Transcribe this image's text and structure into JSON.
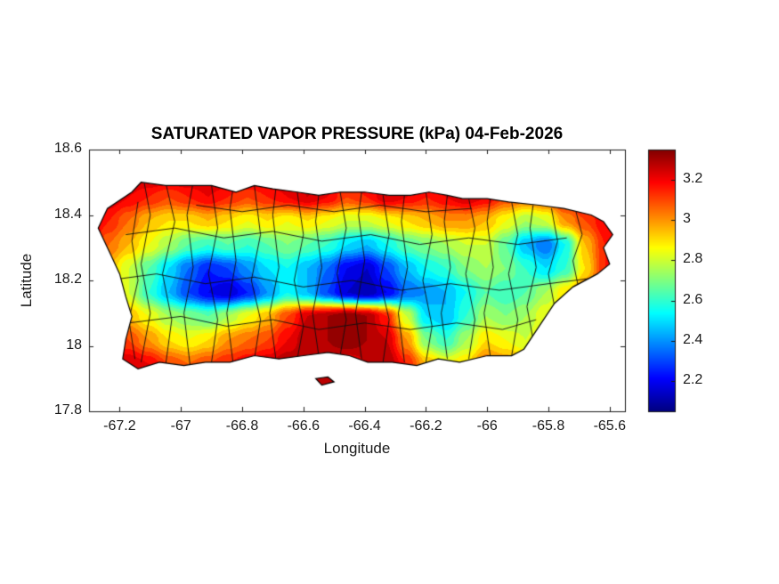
{
  "figure": {
    "title": "SATURATED VAPOR PRESSURE (kPa) 04-Feb-2026",
    "xlabel": "Longitude",
    "ylabel": "Latitude",
    "background": "#ffffff"
  },
  "axes": {
    "xlim": [
      -67.3,
      -65.55
    ],
    "ylim": [
      17.8,
      18.6
    ],
    "xticks": [
      -67.2,
      -67,
      -66.8,
      -66.6,
      -66.4,
      -66.2,
      -66,
      -65.8,
      -65.6
    ],
    "xtick_labels": [
      "-67.2",
      "-67",
      "-66.8",
      "-66.6",
      "-66.4",
      "-66.2",
      "-66",
      "-65.8",
      "-65.6"
    ],
    "yticks": [
      17.8,
      18,
      18.2,
      18.4,
      18.6
    ],
    "ytick_labels": [
      "17.8",
      "18",
      "18.2",
      "18.4",
      "18.6"
    ]
  },
  "colorbar": {
    "clim": [
      2.05,
      3.35
    ],
    "ticks": [
      2.2,
      2.4,
      2.6,
      2.8,
      3,
      3.2
    ],
    "tick_labels": [
      "2.2",
      "2.4",
      "2.6",
      "2.8",
      "3",
      "3.2"
    ]
  },
  "colormap": {
    "name": "jet",
    "stops": [
      [
        0.0,
        "#000080"
      ],
      [
        0.125,
        "#0000FF"
      ],
      [
        0.375,
        "#00FFFF"
      ],
      [
        0.625,
        "#FFFF00"
      ],
      [
        0.875,
        "#FF0000"
      ],
      [
        1.0,
        "#800000"
      ]
    ]
  },
  "chart_data": {
    "type": "heatmap",
    "title": "SATURATED VAPOR PRESSURE (kPa) 04-Feb-2026",
    "xlabel": "Longitude",
    "ylabel": "Latitude",
    "units": "kPa",
    "date": "04-Feb-2026",
    "contour_step": 0.05,
    "lon": [
      -67.3,
      -67.235,
      -67.17,
      -67.105,
      -67.04,
      -66.976,
      -66.911,
      -66.846,
      -66.781,
      -66.716,
      -66.652,
      -66.587,
      -66.522,
      -66.457,
      -66.393,
      -66.328,
      -66.263,
      -66.198,
      -66.133,
      -66.069,
      -66.004,
      -65.939,
      -65.874,
      -65.809,
      -65.745,
      -65.68,
      -65.615,
      -65.55
    ],
    "lat": [
      17.8,
      17.873,
      17.945,
      18.018,
      18.091,
      18.164,
      18.236,
      18.309,
      18.382,
      18.455,
      18.527,
      18.6
    ],
    "values_kpa": [
      [
        3.3,
        3.3,
        3.3,
        3.3,
        3.3,
        3.3,
        3.3,
        3.3,
        3.3,
        3.3,
        3.3,
        3.3,
        3.3,
        3.3,
        3.3,
        3.3,
        3.1,
        2.9,
        2.85,
        2.95,
        3.05,
        3.0,
        3.0,
        3.1,
        3.2,
        3.3,
        3.3,
        3.3
      ],
      [
        3.3,
        3.3,
        3.3,
        3.3,
        3.3,
        3.3,
        3.3,
        3.3,
        3.3,
        3.3,
        3.3,
        3.3,
        3.3,
        3.3,
        3.3,
        3.3,
        3.1,
        2.9,
        2.85,
        2.95,
        3.05,
        3.0,
        3.0,
        3.1,
        3.2,
        3.3,
        3.3,
        3.3
      ],
      [
        3.1,
        3.2,
        3.25,
        3.2,
        3.1,
        3.05,
        3.1,
        3.15,
        3.2,
        3.25,
        3.3,
        3.3,
        3.25,
        3.2,
        3.25,
        3.3,
        3.15,
        2.95,
        2.85,
        2.9,
        3.05,
        3.0,
        2.95,
        3.05,
        3.1,
        3.2,
        3.2,
        3.2
      ],
      [
        3.15,
        3.2,
        3.1,
        3.0,
        2.9,
        2.85,
        2.9,
        3.0,
        3.05,
        3.1,
        3.2,
        3.3,
        3.3,
        3.35,
        3.3,
        3.25,
        3.0,
        2.7,
        2.6,
        2.75,
        2.9,
        2.85,
        2.8,
        2.9,
        3.0,
        3.1,
        3.15,
        3.2
      ],
      [
        3.2,
        3.1,
        2.95,
        2.85,
        2.75,
        2.7,
        2.65,
        2.75,
        2.85,
        2.95,
        3.1,
        3.25,
        3.3,
        3.35,
        3.3,
        3.15,
        2.8,
        2.5,
        2.45,
        2.6,
        2.75,
        2.7,
        2.75,
        2.85,
        2.95,
        3.05,
        3.15,
        3.2
      ],
      [
        3.15,
        3.0,
        2.8,
        2.6,
        2.45,
        2.3,
        2.2,
        2.15,
        2.25,
        2.4,
        2.55,
        2.45,
        2.3,
        2.15,
        2.1,
        2.2,
        2.35,
        2.4,
        2.45,
        2.55,
        2.65,
        2.6,
        2.65,
        2.75,
        2.9,
        3.05,
        3.2,
        3.25
      ],
      [
        3.1,
        2.95,
        2.8,
        2.65,
        2.5,
        2.35,
        2.25,
        2.3,
        2.4,
        2.5,
        2.55,
        2.45,
        2.35,
        2.2,
        2.15,
        2.3,
        2.45,
        2.55,
        2.6,
        2.7,
        2.75,
        2.7,
        2.6,
        2.5,
        2.6,
        2.9,
        3.15,
        3.3
      ],
      [
        3.2,
        3.05,
        2.95,
        2.85,
        2.75,
        2.65,
        2.6,
        2.65,
        2.6,
        2.65,
        2.7,
        2.65,
        2.6,
        2.5,
        2.45,
        2.55,
        2.65,
        2.7,
        2.75,
        2.8,
        2.8,
        2.65,
        2.45,
        2.35,
        2.55,
        2.95,
        3.15,
        3.25
      ],
      [
        3.25,
        3.15,
        3.05,
        2.95,
        2.9,
        2.9,
        2.95,
        2.9,
        2.85,
        2.9,
        2.85,
        2.9,
        2.85,
        2.8,
        2.8,
        2.85,
        2.9,
        2.95,
        3.0,
        3.0,
        2.95,
        2.85,
        2.75,
        2.8,
        3.0,
        3.1,
        3.2,
        3.25
      ],
      [
        3.3,
        3.25,
        3.2,
        3.15,
        3.1,
        3.15,
        3.2,
        3.15,
        3.1,
        3.15,
        3.2,
        3.25,
        3.2,
        3.1,
        3.15,
        3.25,
        3.2,
        3.15,
        3.2,
        3.25,
        3.2,
        3.1,
        3.05,
        3.1,
        3.2,
        3.25,
        3.3,
        3.3
      ],
      [
        3.3,
        3.3,
        3.3,
        3.3,
        3.3,
        3.3,
        3.3,
        3.3,
        3.3,
        3.3,
        3.3,
        3.3,
        3.3,
        3.3,
        3.3,
        3.3,
        3.3,
        3.3,
        3.3,
        3.3,
        3.3,
        3.3,
        3.3,
        3.3,
        3.3,
        3.3,
        3.3,
        3.3
      ],
      [
        3.3,
        3.3,
        3.3,
        3.3,
        3.3,
        3.3,
        3.3,
        3.3,
        3.3,
        3.3,
        3.3,
        3.3,
        3.3,
        3.3,
        3.3,
        3.3,
        3.3,
        3.3,
        3.3,
        3.3,
        3.3,
        3.3,
        3.3,
        3.3,
        3.3,
        3.3,
        3.3,
        3.3
      ]
    ]
  },
  "map": {
    "region": "Puerto Rico",
    "island_outline": [
      [
        -67.27,
        18.36
      ],
      [
        -67.24,
        18.42
      ],
      [
        -67.16,
        18.47
      ],
      [
        -67.13,
        18.5
      ],
      [
        -67.05,
        18.49
      ],
      [
        -66.95,
        18.49
      ],
      [
        -66.9,
        18.49
      ],
      [
        -66.82,
        18.47
      ],
      [
        -66.76,
        18.49
      ],
      [
        -66.7,
        18.48
      ],
      [
        -66.62,
        18.47
      ],
      [
        -66.55,
        18.46
      ],
      [
        -66.48,
        18.47
      ],
      [
        -66.4,
        18.47
      ],
      [
        -66.32,
        18.46
      ],
      [
        -66.25,
        18.46
      ],
      [
        -66.19,
        18.47
      ],
      [
        -66.13,
        18.46
      ],
      [
        -66.08,
        18.45
      ],
      [
        -66.0,
        18.45
      ],
      [
        -65.93,
        18.44
      ],
      [
        -65.83,
        18.43
      ],
      [
        -65.75,
        18.42
      ],
      [
        -65.66,
        18.4
      ],
      [
        -65.62,
        18.38
      ],
      [
        -65.59,
        18.34
      ],
      [
        -65.62,
        18.3
      ],
      [
        -65.6,
        18.25
      ],
      [
        -65.64,
        18.22
      ],
      [
        -65.72,
        18.18
      ],
      [
        -65.78,
        18.13
      ],
      [
        -65.83,
        18.06
      ],
      [
        -65.88,
        17.99
      ],
      [
        -65.92,
        17.97
      ],
      [
        -66.0,
        17.97
      ],
      [
        -66.09,
        17.95
      ],
      [
        -66.16,
        17.96
      ],
      [
        -66.23,
        17.94
      ],
      [
        -66.31,
        17.95
      ],
      [
        -66.39,
        17.95
      ],
      [
        -66.45,
        17.97
      ],
      [
        -66.52,
        17.98
      ],
      [
        -66.6,
        17.97
      ],
      [
        -66.68,
        17.96
      ],
      [
        -66.76,
        17.97
      ],
      [
        -66.84,
        17.95
      ],
      [
        -66.92,
        17.95
      ],
      [
        -66.99,
        17.94
      ],
      [
        -67.07,
        17.95
      ],
      [
        -67.14,
        17.93
      ],
      [
        -67.19,
        17.96
      ],
      [
        -67.18,
        18.02
      ],
      [
        -67.16,
        18.09
      ],
      [
        -67.18,
        18.15
      ],
      [
        -67.2,
        18.22
      ],
      [
        -67.23,
        18.28
      ]
    ],
    "islets": [
      [
        [
          -66.56,
          17.9
        ],
        [
          -66.52,
          17.905
        ],
        [
          -66.5,
          17.89
        ],
        [
          -66.54,
          17.88
        ]
      ]
    ],
    "municipal_boundaries": [
      [
        [
          -67.15,
          17.96
        ],
        [
          -67.17,
          18.08
        ],
        [
          -67.14,
          18.2
        ],
        [
          -67.16,
          18.32
        ],
        [
          -67.14,
          18.44
        ]
      ],
      [
        [
          -67.13,
          17.95
        ],
        [
          -67.1,
          18.1
        ],
        [
          -67.13,
          18.25
        ],
        [
          -67.1,
          18.4
        ],
        [
          -67.12,
          18.5
        ]
      ],
      [
        [
          -67.05,
          17.94
        ],
        [
          -67.03,
          18.08
        ],
        [
          -67.06,
          18.22
        ],
        [
          -67.02,
          18.38
        ],
        [
          -67.05,
          18.5
        ]
      ],
      [
        [
          -66.97,
          17.94
        ],
        [
          -66.99,
          18.1
        ],
        [
          -66.96,
          18.24
        ],
        [
          -66.98,
          18.4
        ],
        [
          -66.96,
          18.5
        ]
      ],
      [
        [
          -66.9,
          17.95
        ],
        [
          -66.88,
          18.08
        ],
        [
          -66.91,
          18.22
        ],
        [
          -66.88,
          18.36
        ],
        [
          -66.9,
          18.49
        ]
      ],
      [
        [
          -66.83,
          17.95
        ],
        [
          -66.85,
          18.1
        ],
        [
          -66.82,
          18.26
        ],
        [
          -66.84,
          18.42
        ],
        [
          -66.83,
          18.48
        ]
      ],
      [
        [
          -66.76,
          17.96
        ],
        [
          -66.74,
          18.08
        ],
        [
          -66.77,
          18.2
        ],
        [
          -66.74,
          18.34
        ],
        [
          -66.76,
          18.49
        ]
      ],
      [
        [
          -66.69,
          17.96
        ],
        [
          -66.71,
          18.1
        ],
        [
          -66.68,
          18.24
        ],
        [
          -66.7,
          18.4
        ],
        [
          -66.69,
          18.48
        ]
      ],
      [
        [
          -66.62,
          17.96
        ],
        [
          -66.6,
          18.06
        ],
        [
          -66.63,
          18.2
        ],
        [
          -66.6,
          18.34
        ],
        [
          -66.62,
          18.47
        ]
      ],
      [
        [
          -66.55,
          17.97
        ],
        [
          -66.57,
          18.1
        ],
        [
          -66.54,
          18.24
        ],
        [
          -66.56,
          18.38
        ],
        [
          -66.55,
          18.46
        ]
      ],
      [
        [
          -66.48,
          17.97
        ],
        [
          -66.46,
          18.08
        ],
        [
          -66.49,
          18.22
        ],
        [
          -66.46,
          18.36
        ],
        [
          -66.48,
          18.47
        ]
      ],
      [
        [
          -66.41,
          17.96
        ],
        [
          -66.43,
          18.1
        ],
        [
          -66.4,
          18.26
        ],
        [
          -66.42,
          18.4
        ],
        [
          -66.41,
          18.47
        ]
      ],
      [
        [
          -66.34,
          17.95
        ],
        [
          -66.32,
          18.08
        ],
        [
          -66.35,
          18.2
        ],
        [
          -66.32,
          18.34
        ],
        [
          -66.34,
          18.46
        ]
      ],
      [
        [
          -66.27,
          17.95
        ],
        [
          -66.29,
          18.1
        ],
        [
          -66.26,
          18.24
        ],
        [
          -66.28,
          18.38
        ],
        [
          -66.27,
          18.46
        ]
      ],
      [
        [
          -66.2,
          17.95
        ],
        [
          -66.18,
          18.06
        ],
        [
          -66.21,
          18.2
        ],
        [
          -66.18,
          18.34
        ],
        [
          -66.2,
          18.47
        ]
      ],
      [
        [
          -66.13,
          17.96
        ],
        [
          -66.15,
          18.1
        ],
        [
          -66.12,
          18.24
        ],
        [
          -66.14,
          18.38
        ],
        [
          -66.13,
          18.46
        ]
      ],
      [
        [
          -66.06,
          17.96
        ],
        [
          -66.04,
          18.08
        ],
        [
          -66.07,
          18.22
        ],
        [
          -66.04,
          18.36
        ],
        [
          -66.06,
          18.45
        ]
      ],
      [
        [
          -65.99,
          17.97
        ],
        [
          -66.01,
          18.1
        ],
        [
          -65.98,
          18.24
        ],
        [
          -66.0,
          18.38
        ],
        [
          -65.99,
          18.45
        ]
      ],
      [
        [
          -65.92,
          17.97
        ],
        [
          -65.9,
          18.08
        ],
        [
          -65.93,
          18.22
        ],
        [
          -65.9,
          18.34
        ],
        [
          -65.92,
          18.44
        ]
      ],
      [
        [
          -65.85,
          18.02
        ],
        [
          -65.87,
          18.12
        ],
        [
          -65.84,
          18.24
        ],
        [
          -65.86,
          18.36
        ],
        [
          -65.85,
          18.43
        ]
      ],
      [
        [
          -65.78,
          18.12
        ],
        [
          -65.8,
          18.22
        ],
        [
          -65.77,
          18.32
        ],
        [
          -65.79,
          18.42
        ]
      ],
      [
        [
          -65.7,
          18.17
        ],
        [
          -65.72,
          18.26
        ],
        [
          -65.69,
          18.34
        ],
        [
          -65.71,
          18.41
        ]
      ],
      [
        [
          -67.17,
          18.07
        ],
        [
          -67.0,
          18.09
        ],
        [
          -66.85,
          18.06
        ],
        [
          -66.7,
          18.08
        ],
        [
          -66.55,
          18.05
        ],
        [
          -66.4,
          18.07
        ],
        [
          -66.25,
          18.05
        ],
        [
          -66.1,
          18.07
        ],
        [
          -65.95,
          18.05
        ],
        [
          -65.84,
          18.08
        ]
      ],
      [
        [
          -67.24,
          18.2
        ],
        [
          -67.08,
          18.22
        ],
        [
          -66.92,
          18.19
        ],
        [
          -66.76,
          18.21
        ],
        [
          -66.6,
          18.18
        ],
        [
          -66.44,
          18.2
        ],
        [
          -66.28,
          18.17
        ],
        [
          -66.12,
          18.19
        ],
        [
          -65.96,
          18.17
        ],
        [
          -65.8,
          18.19
        ],
        [
          -65.63,
          18.21
        ]
      ],
      [
        [
          -67.18,
          18.34
        ],
        [
          -67.02,
          18.36
        ],
        [
          -66.86,
          18.33
        ],
        [
          -66.7,
          18.35
        ],
        [
          -66.54,
          18.32
        ],
        [
          -66.38,
          18.34
        ],
        [
          -66.22,
          18.31
        ],
        [
          -66.06,
          18.33
        ],
        [
          -65.9,
          18.31
        ],
        [
          -65.74,
          18.33
        ]
      ],
      [
        [
          -66.95,
          18.43
        ],
        [
          -66.8,
          18.41
        ],
        [
          -66.65,
          18.43
        ],
        [
          -66.5,
          18.41
        ],
        [
          -66.35,
          18.43
        ],
        [
          -66.2,
          18.41
        ],
        [
          -66.05,
          18.42
        ]
      ]
    ]
  }
}
